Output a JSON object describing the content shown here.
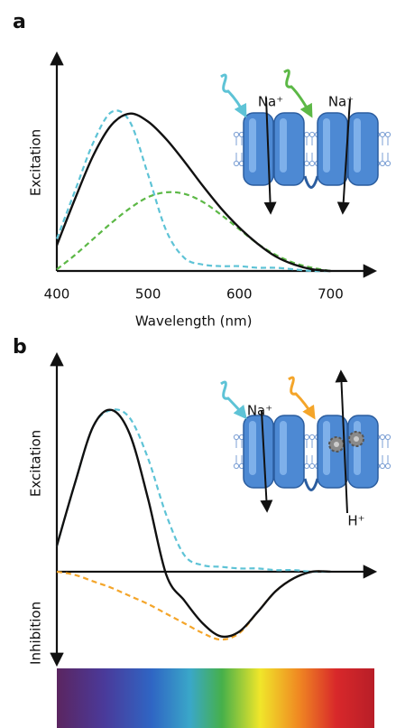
{
  "chart_data": [
    {
      "type": "line",
      "panel_label": "a",
      "ylabel": "Excitation",
      "xlabel": "Wavelength (nm)",
      "x": [
        400,
        420,
        440,
        460,
        480,
        500,
        520,
        540,
        560,
        580,
        600,
        620,
        640,
        660,
        680,
        700
      ],
      "xlim": [
        400,
        748
      ],
      "ylim": [
        0,
        1.35
      ],
      "xticks": [
        400,
        500,
        600,
        700
      ],
      "series": [
        {
          "color": "#111111",
          "dash": false,
          "values": [
            0.16,
            0.45,
            0.72,
            0.91,
            0.98,
            0.93,
            0.82,
            0.68,
            0.53,
            0.39,
            0.27,
            0.17,
            0.09,
            0.04,
            0.01,
            0.0
          ]
        },
        {
          "color": "#5ec3d6",
          "dash": true,
          "values": [
            0.2,
            0.5,
            0.8,
            0.99,
            0.93,
            0.6,
            0.25,
            0.08,
            0.04,
            0.03,
            0.03,
            0.02,
            0.02,
            0.01,
            0.0,
            0.0
          ]
        },
        {
          "color": "#5cb846",
          "dash": true,
          "values": [
            0.01,
            0.1,
            0.2,
            0.3,
            0.39,
            0.46,
            0.49,
            0.48,
            0.43,
            0.35,
            0.26,
            0.17,
            0.1,
            0.05,
            0.02,
            0.0
          ]
        }
      ],
      "annotations": [
        "Na⁺",
        "Na⁺"
      ]
    },
    {
      "type": "line",
      "panel_label": "b",
      "ylabel": "Excitation",
      "ylabel_negative": "Inhibition",
      "x": [
        400,
        420,
        440,
        460,
        480,
        500,
        520,
        540,
        560,
        580,
        600,
        620,
        640,
        660,
        680,
        700
      ],
      "xlim": [
        400,
        748
      ],
      "ylim": [
        -0.57,
        1.34
      ],
      "series": [
        {
          "color": "#111111",
          "dash": false,
          "values": [
            0.16,
            0.55,
            0.9,
            1.0,
            0.85,
            0.45,
            -0.02,
            -0.18,
            -0.32,
            -0.4,
            -0.37,
            -0.25,
            -0.12,
            -0.04,
            0.0,
            0.0
          ]
        },
        {
          "color": "#5ec3d6",
          "dash": true,
          "values": [
            0.16,
            0.55,
            0.9,
            1.0,
            0.95,
            0.7,
            0.35,
            0.1,
            0.04,
            0.03,
            0.02,
            0.02,
            0.01,
            0.01,
            0.0,
            0.0
          ]
        },
        {
          "color": "#f4a52a",
          "dash": true,
          "values": [
            0.0,
            -0.02,
            -0.06,
            -0.1,
            -0.15,
            -0.2,
            -0.26,
            -0.32,
            -0.38,
            -0.42,
            -0.38,
            -0.25,
            -0.12,
            -0.04,
            0.0,
            0.0
          ]
        }
      ],
      "annotations": [
        "Na⁺",
        "H⁺"
      ]
    }
  ]
}
